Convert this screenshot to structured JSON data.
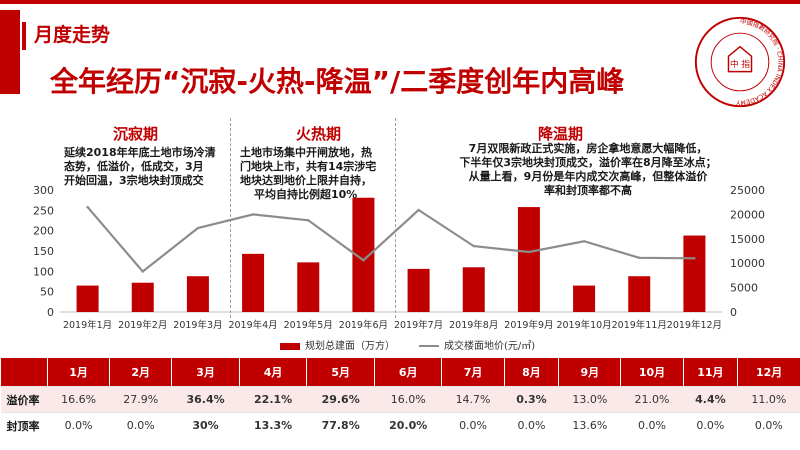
{
  "header": {
    "kicker": "月度走势",
    "headline": "全年经历“沉寂-火热-降温”/二季度创年内高峰"
  },
  "logo": {
    "center_text": "中 指",
    "ring_text": "中國指數研究院 · CHINA INDEX ACADEMY"
  },
  "phases": [
    {
      "title": "沉寂期",
      "desc": [
        "延续2018年年底土地市场冷清",
        "态势，低溢价，低成交，3月",
        "开始回温，3宗地块封顶成交"
      ]
    },
    {
      "title": "火热期",
      "desc": [
        "土地市场集中开闸放地，热",
        "门地块上市，共有14宗涉宅",
        "地块达到地价上限并自持，",
        "平均自持比例超10%"
      ]
    },
    {
      "title": "降温期",
      "desc": [
        "7月双限新政正式实施，房企拿地意愿大幅降低，",
        "下半年仅3宗地块封顶成交，溢价率在8月降至冰点；",
        "从量上看，9月份是年内成交次高峰，但整体溢价",
        "率和封顶率都不高"
      ]
    }
  ],
  "chart_data": {
    "type": "bar",
    "categories": [
      "2019年1月",
      "2019年2月",
      "2019年3月",
      "2019年4月",
      "2019年5月",
      "2019年6月",
      "2019年7月",
      "2019年8月",
      "2019年9月",
      "2019年10月",
      "2019年11月",
      "2019年12月"
    ],
    "series": [
      {
        "name": "规划总建面（万方）",
        "type": "bar",
        "axis": "left",
        "color": "#c00000",
        "values": [
          65,
          72,
          88,
          143,
          122,
          281,
          106,
          110,
          258,
          65,
          88,
          188
        ]
      },
      {
        "name": "成交楼面地价(元/㎡)",
        "type": "line",
        "axis": "right",
        "color": "#8c8c8c",
        "values": [
          21500,
          8300,
          17200,
          20000,
          18800,
          10600,
          20900,
          13500,
          12300,
          14500,
          11100,
          11000
        ]
      }
    ],
    "ylim_left": [
      0,
      300
    ],
    "yticks_left": [
      "0",
      "50",
      "100",
      "150",
      "200",
      "250",
      "300"
    ],
    "ylim_right": [
      0,
      25000
    ],
    "yticks_right": [
      "0",
      "5000",
      "10000",
      "15000",
      "20000",
      "25000"
    ],
    "grid": false,
    "legend": "bottom"
  },
  "table": {
    "months": [
      "1月",
      "2月",
      "3月",
      "4月",
      "5月",
      "6月",
      "7月",
      "8月",
      "9月",
      "10月",
      "11月",
      "12月"
    ],
    "rows": [
      {
        "label": "溢价率",
        "values": [
          "16.6%",
          "27.9%",
          "36.4%",
          "22.1%",
          "29.6%",
          "16.0%",
          "14.7%",
          "0.3%",
          "13.0%",
          "21.0%",
          "4.4%",
          "11.0%"
        ],
        "styles": [
          "",
          "",
          "red",
          "red",
          "red",
          "",
          "",
          "green",
          "",
          "",
          "green",
          ""
        ]
      },
      {
        "label": "封顶率",
        "values": [
          "0.0%",
          "0.0%",
          "30%",
          "13.3%",
          "77.8%",
          "20.0%",
          "0.0%",
          "0.0%",
          "13.6%",
          "0.0%",
          "0.0%",
          "0.0%"
        ],
        "styles": [
          "",
          "",
          "red",
          "red",
          "red",
          "red",
          "",
          "",
          "",
          "",
          "",
          ""
        ]
      }
    ]
  }
}
